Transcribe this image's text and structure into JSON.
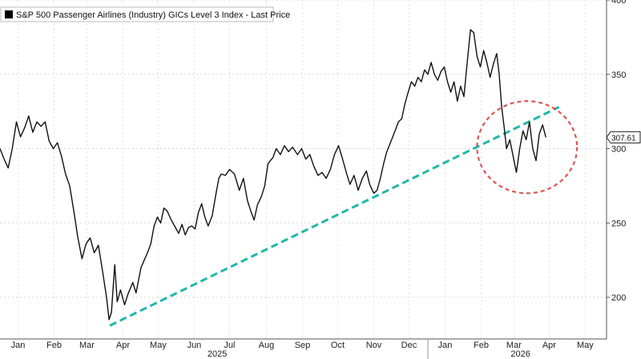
{
  "chart_data": {
    "type": "line",
    "legend": {
      "label": "S&P 500 Passenger Airlines (Industry) GICs Level 3 Index - Last Price",
      "color": "#000000",
      "placement": "top-left"
    },
    "last_value_label": "307.61",
    "y_axis": {
      "side": "right",
      "range": [
        172,
        400
      ],
      "ticks": [
        200,
        250,
        300,
        350,
        400
      ],
      "grid": true
    },
    "x_axis": {
      "range_weeks": [
        0,
        74
      ],
      "months": [
        {
          "label": "Jan",
          "week": 2.2
        },
        {
          "label": "Feb",
          "week": 6.6
        },
        {
          "label": "Mar",
          "week": 10.6
        },
        {
          "label": "Apr",
          "week": 15.0
        },
        {
          "label": "May",
          "week": 19.3
        },
        {
          "label": "Jun",
          "week": 23.7
        },
        {
          "label": "Jul",
          "week": 28.0
        },
        {
          "label": "Aug",
          "week": 32.5
        },
        {
          "label": "Sep",
          "week": 36.9
        },
        {
          "label": "Oct",
          "week": 41.2
        },
        {
          "label": "Nov",
          "week": 45.6
        },
        {
          "label": "Dec",
          "week": 49.9
        },
        {
          "label": "Jan",
          "week": 54.3
        },
        {
          "label": "Feb",
          "week": 58.7
        },
        {
          "label": "Mar",
          "week": 62.7
        },
        {
          "label": "Apr",
          "week": 67.0
        },
        {
          "label": "May",
          "week": 71.4
        }
      ],
      "years": [
        {
          "label": "2025",
          "week": 26.5
        },
        {
          "label": "2026",
          "week": 63.5
        }
      ],
      "year_divider_week": 52.2,
      "grid": true
    },
    "series": [
      {
        "color": "#111111",
        "points": [
          [
            0,
            300
          ],
          [
            0.5,
            293
          ],
          [
            1,
            287
          ],
          [
            1.5,
            300
          ],
          [
            2,
            318
          ],
          [
            2.5,
            308
          ],
          [
            3,
            314
          ],
          [
            3.5,
            322
          ],
          [
            4,
            311
          ],
          [
            4.5,
            318
          ],
          [
            5,
            315
          ],
          [
            5.5,
            318
          ],
          [
            6,
            305
          ],
          [
            6.5,
            300
          ],
          [
            7,
            304
          ],
          [
            7.5,
            295
          ],
          [
            8,
            283
          ],
          [
            8.5,
            275
          ],
          [
            9,
            258
          ],
          [
            9.5,
            240
          ],
          [
            10,
            226
          ],
          [
            10.5,
            236
          ],
          [
            11,
            240
          ],
          [
            11.5,
            230
          ],
          [
            12,
            235
          ],
          [
            12.5,
            218
          ],
          [
            13,
            200
          ],
          [
            13.3,
            185
          ],
          [
            13.6,
            190
          ],
          [
            14,
            222
          ],
          [
            14.3,
            197
          ],
          [
            14.7,
            205
          ],
          [
            15.2,
            195
          ],
          [
            15.6,
            202
          ],
          [
            16.2,
            210
          ],
          [
            16.6,
            203
          ],
          [
            17.2,
            220
          ],
          [
            17.6,
            225
          ],
          [
            18,
            230
          ],
          [
            18.4,
            236
          ],
          [
            18.8,
            248
          ],
          [
            19.2,
            254
          ],
          [
            19.6,
            250
          ],
          [
            20,
            260
          ],
          [
            20.4,
            258
          ],
          [
            20.9,
            252
          ],
          [
            21.3,
            248
          ],
          [
            21.8,
            243
          ],
          [
            22.2,
            249
          ],
          [
            22.6,
            242
          ],
          [
            23,
            247
          ],
          [
            23.4,
            248
          ],
          [
            23.8,
            246
          ],
          [
            24.2,
            257
          ],
          [
            24.6,
            263
          ],
          [
            25,
            254
          ],
          [
            25.4,
            248
          ],
          [
            25.9,
            255
          ],
          [
            26.3,
            268
          ],
          [
            26.7,
            280
          ],
          [
            27,
            283
          ],
          [
            27.5,
            282
          ],
          [
            28,
            286
          ],
          [
            28.6,
            283
          ],
          [
            29.2,
            272
          ],
          [
            29.7,
            280
          ],
          [
            30.2,
            265
          ],
          [
            30.6,
            258
          ],
          [
            31,
            252
          ],
          [
            31.4,
            262
          ],
          [
            31.9,
            268
          ],
          [
            32.3,
            275
          ],
          [
            32.7,
            290
          ],
          [
            33.3,
            294
          ],
          [
            33.7,
            300
          ],
          [
            34.2,
            296
          ],
          [
            34.7,
            302
          ],
          [
            35.2,
            298
          ],
          [
            35.7,
            301
          ],
          [
            36.3,
            296
          ],
          [
            36.8,
            300
          ],
          [
            37.3,
            293
          ],
          [
            37.8,
            296
          ],
          [
            38.3,
            288
          ],
          [
            38.8,
            282
          ],
          [
            39.3,
            284
          ],
          [
            39.8,
            280
          ],
          [
            40.3,
            286
          ],
          [
            40.8,
            296
          ],
          [
            41.3,
            302
          ],
          [
            41.8,
            293
          ],
          [
            42.3,
            283
          ],
          [
            42.7,
            276
          ],
          [
            43.2,
            282
          ],
          [
            43.7,
            272
          ],
          [
            44.2,
            280
          ],
          [
            44.7,
            285
          ],
          [
            45.1,
            276
          ],
          [
            45.6,
            270
          ],
          [
            46,
            272
          ],
          [
            46.4,
            280
          ],
          [
            46.8,
            290
          ],
          [
            47.2,
            298
          ],
          [
            47.7,
            305
          ],
          [
            48.2,
            312
          ],
          [
            48.6,
            318
          ],
          [
            49,
            320
          ],
          [
            49.4,
            330
          ],
          [
            49.8,
            338
          ],
          [
            50.2,
            345
          ],
          [
            50.6,
            342
          ],
          [
            51,
            348
          ],
          [
            51.4,
            345
          ],
          [
            51.8,
            353
          ],
          [
            52.2,
            350
          ],
          [
            52.6,
            358
          ],
          [
            53,
            350
          ],
          [
            53.4,
            346
          ],
          [
            53.8,
            352
          ],
          [
            54.2,
            355
          ],
          [
            54.6,
            345
          ],
          [
            55,
            338
          ],
          [
            55.4,
            345
          ],
          [
            55.8,
            332
          ],
          [
            56.2,
            342
          ],
          [
            56.6,
            335
          ],
          [
            57,
            358
          ],
          [
            57.4,
            380
          ],
          [
            57.8,
            378
          ],
          [
            58.2,
            362
          ],
          [
            58.6,
            355
          ],
          [
            59,
            366
          ],
          [
            59.4,
            358
          ],
          [
            59.8,
            348
          ],
          [
            60.2,
            357
          ],
          [
            60.6,
            364
          ],
          [
            60.9,
            350
          ],
          [
            61.2,
            328
          ],
          [
            61.5,
            315
          ],
          [
            61.8,
            300
          ],
          [
            62.2,
            306
          ],
          [
            62.6,
            295
          ],
          [
            63,
            284
          ],
          [
            63.4,
            300
          ],
          [
            63.8,
            312
          ],
          [
            64.2,
            306
          ],
          [
            64.6,
            318
          ],
          [
            65,
            300
          ],
          [
            65.4,
            292
          ],
          [
            65.8,
            310
          ],
          [
            66.2,
            316
          ],
          [
            66.6,
            307.61
          ]
        ]
      }
    ],
    "annotations": [
      {
        "type": "trendline",
        "style": "dashed",
        "color": "#1fb8a6",
        "from": [
          13.4,
          181
        ],
        "to": [
          68.2,
          328
        ]
      },
      {
        "type": "circle",
        "style": "dashed",
        "color": "#e05555",
        "center_week": 64.3,
        "center_value": 301,
        "radius_weeks": 6.1,
        "radius_value": 31
      }
    ]
  }
}
